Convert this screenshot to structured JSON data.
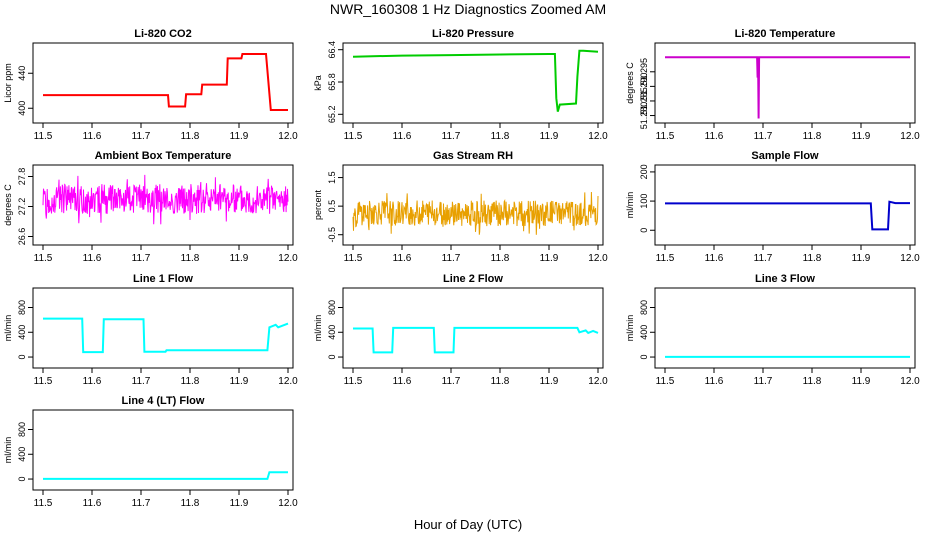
{
  "figure": {
    "title": "NWR_160308  1 Hz Diagnostics Zoomed AM",
    "xlabel": "Hour of Day (UTC)"
  },
  "chart_data": [
    {
      "type": "line",
      "title": "Li-820 CO2",
      "ylabel": "Licor ppm",
      "color": "#ff0000",
      "xlim": [
        11.5,
        12.0
      ],
      "ylim": [
        390,
        470
      ],
      "xticks": [
        "11.5",
        "11.6",
        "11.7",
        "11.8",
        "11.9",
        "12.0"
      ],
      "yticks": [
        "400",
        "440"
      ],
      "series": [
        {
          "x": [
            11.5,
            11.755,
            11.757,
            11.79,
            11.792,
            11.823,
            11.825,
            11.875,
            11.877,
            11.905,
            11.907,
            11.955,
            11.96,
            11.965,
            12.0
          ],
          "y": [
            415,
            415,
            402,
            402,
            416,
            416,
            427,
            427,
            457,
            457,
            462,
            462,
            430,
            398,
            398
          ]
        }
      ]
    },
    {
      "type": "line",
      "title": "Li-820 Pressure",
      "ylabel": "kPa",
      "color": "#00cc00",
      "xlim": [
        11.5,
        12.0
      ],
      "ylim": [
        65.15,
        66.45
      ],
      "xticks": [
        "11.5",
        "11.6",
        "11.7",
        "11.8",
        "11.9",
        "12.0"
      ],
      "yticks": [
        "65.2",
        "65.8",
        "66.4"
      ],
      "series": [
        {
          "x": [
            11.5,
            11.6,
            11.7,
            11.8,
            11.9,
            11.912,
            11.915,
            11.918,
            11.922,
            11.955,
            11.958,
            11.962,
            11.97,
            12.0
          ],
          "y": [
            66.27,
            66.29,
            66.3,
            66.31,
            66.32,
            66.32,
            65.5,
            65.25,
            65.38,
            65.4,
            65.9,
            66.38,
            66.38,
            66.36
          ]
        }
      ]
    },
    {
      "type": "line",
      "title": "Li-820 Temperature",
      "ylabel": "degrees C",
      "color": "#cc00cc",
      "xlim": [
        11.5,
        12.0
      ],
      "ylim": [
        51.2795,
        51.3035
      ],
      "xticks": [
        "11.5",
        "11.6",
        "11.7",
        "11.8",
        "11.9",
        "12.0"
      ],
      "yticks": [
        "51.280",
        "51.285",
        "51.290",
        "51.295"
      ],
      "series": [
        {
          "x": [
            11.5,
            11.688,
            11.689,
            11.69,
            11.691,
            11.692,
            12.0
          ],
          "y": [
            51.3,
            51.3,
            51.293,
            51.298,
            51.279,
            51.3,
            51.3
          ]
        }
      ]
    },
    {
      "type": "line",
      "title": "Ambient Box Temperature",
      "ylabel": "degrees C",
      "color": "#ff00ff",
      "xlim": [
        11.5,
        12.0
      ],
      "ylim": [
        26.55,
        27.95
      ],
      "xticks": [
        "11.5",
        "11.6",
        "11.7",
        "11.8",
        "11.9",
        "12.0"
      ],
      "yticks": [
        "26.6",
        "27.2",
        "27.8"
      ],
      "noise": {
        "center": 27.35,
        "amp": 0.3
      },
      "series": [
        {
          "x": [
            11.5,
            12.0
          ],
          "y": [
            27.35,
            27.35
          ]
        }
      ]
    },
    {
      "type": "line",
      "title": "Gas Stream RH",
      "ylabel": "percent",
      "color": "#e8a000",
      "xlim": [
        11.5,
        12.0
      ],
      "ylim": [
        -0.65,
        1.8
      ],
      "xticks": [
        "11.5",
        "11.6",
        "11.7",
        "11.8",
        "11.9",
        "12.0"
      ],
      "yticks": [
        "-0.5",
        "0.5",
        "1.5"
      ],
      "noise": {
        "center": 0.25,
        "amp": 0.45
      },
      "series": [
        {
          "x": [
            11.5,
            12.0
          ],
          "y": [
            0.25,
            0.25
          ]
        }
      ]
    },
    {
      "type": "line",
      "title": "Sample Flow",
      "ylabel": "ml/min",
      "color": "#0000cc",
      "xlim": [
        11.5,
        12.0
      ],
      "ylim": [
        -30,
        210
      ],
      "xticks": [
        "11.5",
        "11.6",
        "11.7",
        "11.8",
        "11.9",
        "12.0"
      ],
      "yticks": [
        "0",
        "100",
        "200"
      ],
      "series": [
        {
          "x": [
            11.5,
            11.92,
            11.923,
            11.955,
            11.958,
            11.97,
            12.0
          ],
          "y": [
            92,
            92,
            3,
            3,
            98,
            93,
            93
          ]
        }
      ]
    },
    {
      "type": "line",
      "title": "Line 1 Flow",
      "ylabel": "ml/min",
      "color": "#00ffff",
      "xlim": [
        11.5,
        12.0
      ],
      "ylim": [
        -80,
        1050
      ],
      "xticks": [
        "11.5",
        "11.6",
        "11.7",
        "11.8",
        "11.9",
        "12.0"
      ],
      "yticks": [
        "0",
        "400",
        "800"
      ],
      "series": [
        {
          "x": [
            11.5,
            11.58,
            11.582,
            11.622,
            11.624,
            11.705,
            11.707,
            11.75,
            11.752,
            11.958,
            11.962,
            11.975,
            11.98,
            12.0
          ],
          "y": [
            620,
            620,
            80,
            80,
            610,
            610,
            85,
            85,
            110,
            110,
            480,
            520,
            480,
            540
          ]
        }
      ]
    },
    {
      "type": "line",
      "title": "Line 2 Flow",
      "ylabel": "ml/min",
      "color": "#00ffff",
      "xlim": [
        11.5,
        12.0
      ],
      "ylim": [
        -80,
        1050
      ],
      "xticks": [
        "11.5",
        "11.6",
        "11.7",
        "11.8",
        "11.9",
        "12.0"
      ],
      "yticks": [
        "0",
        "400",
        "800"
      ],
      "series": [
        {
          "x": [
            11.5,
            11.54,
            11.542,
            11.58,
            11.582,
            11.665,
            11.667,
            11.705,
            11.707,
            11.958,
            11.962,
            11.975,
            11.98,
            11.99,
            12.0
          ],
          "y": [
            460,
            460,
            75,
            75,
            470,
            470,
            75,
            75,
            470,
            470,
            400,
            430,
            390,
            420,
            390
          ]
        }
      ]
    },
    {
      "type": "line",
      "title": "Line 3 Flow",
      "ylabel": "ml/min",
      "color": "#00ffff",
      "xlim": [
        11.5,
        12.0
      ],
      "ylim": [
        -80,
        1050
      ],
      "xticks": [
        "11.5",
        "11.6",
        "11.7",
        "11.8",
        "11.9",
        "12.0"
      ],
      "yticks": [
        "0",
        "400",
        "800"
      ],
      "series": [
        {
          "x": [
            11.5,
            12.0
          ],
          "y": [
            3,
            3
          ]
        }
      ]
    },
    {
      "type": "line",
      "title": "Line 4 (LT) Flow",
      "ylabel": "ml/min",
      "color": "#00ffff",
      "xlim": [
        11.5,
        12.0
      ],
      "ylim": [
        -80,
        1050
      ],
      "xticks": [
        "11.5",
        "11.6",
        "11.7",
        "11.8",
        "11.9",
        "12.0"
      ],
      "yticks": [
        "0",
        "400",
        "800"
      ],
      "series": [
        {
          "x": [
            11.5,
            11.958,
            11.962,
            12.0
          ],
          "y": [
            3,
            3,
            110,
            110
          ]
        }
      ]
    }
  ]
}
